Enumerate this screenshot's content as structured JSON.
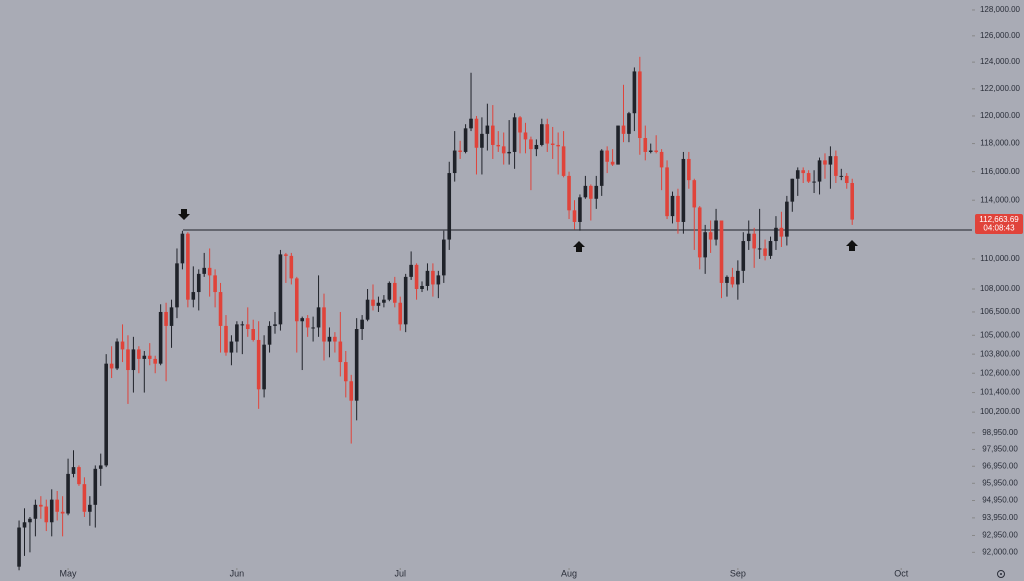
{
  "chart_data": {
    "type": "candlestick",
    "log_scale": true,
    "up_color": "#1f2229",
    "down_color": "#e0433a",
    "xlim": [
      -3.5,
      175
    ],
    "ylim": [
      91460,
      128780
    ],
    "xticks": [
      {
        "value": 9,
        "label": "May"
      },
      {
        "value": 40,
        "label": "Jun"
      },
      {
        "value": 70,
        "label": "Jul"
      },
      {
        "value": 101,
        "label": "Aug"
      },
      {
        "value": 132,
        "label": "Sep"
      },
      {
        "value": 162,
        "label": "Oct"
      }
    ],
    "yticks": [
      {
        "value": 128000,
        "label": "128,000.00"
      },
      {
        "value": 126000,
        "label": "126,000.00"
      },
      {
        "value": 124000,
        "label": "124,000.00"
      },
      {
        "value": 122000,
        "label": "122,000.00"
      },
      {
        "value": 120000,
        "label": "120,000.00"
      },
      {
        "value": 118000,
        "label": "118,000.00"
      },
      {
        "value": 116000,
        "label": "116,000.00"
      },
      {
        "value": 114000,
        "label": "114,000.00"
      },
      {
        "value": 110000,
        "label": "110,000.00"
      },
      {
        "value": 108000,
        "label": "108,000.00"
      },
      {
        "value": 106500,
        "label": "106,500.00"
      },
      {
        "value": 105000,
        "label": "105,000.00"
      },
      {
        "value": 103800,
        "label": "103,800.00"
      },
      {
        "value": 102600,
        "label": "102,600.00"
      },
      {
        "value": 101400,
        "label": "101,400.00"
      },
      {
        "value": 100200,
        "label": "100,200.00"
      },
      {
        "value": 98950,
        "label": "98,950.00"
      },
      {
        "value": 97950,
        "label": "97,950.00"
      },
      {
        "value": 96950,
        "label": "96,950.00"
      },
      {
        "value": 95950,
        "label": "95,950.00"
      },
      {
        "value": 94950,
        "label": "94,950.00"
      },
      {
        "value": 93950,
        "label": "93,950.00"
      },
      {
        "value": 92950,
        "label": "92,950.00"
      },
      {
        "value": 92000,
        "label": "92,000.00"
      }
    ],
    "support_level": 111950,
    "last_price_label": "112,663.69",
    "countdown": "04:08:43",
    "candles": [
      [
        91200,
        93800,
        91000,
        93400
      ],
      [
        93400,
        94500,
        91800,
        93700
      ],
      [
        93700,
        94000,
        92000,
        93900
      ],
      [
        93900,
        95000,
        92900,
        94700
      ],
      [
        94700,
        95200,
        93900,
        94600
      ],
      [
        94600,
        95000,
        93200,
        93700
      ],
      [
        93700,
        95600,
        92900,
        95000
      ],
      [
        95000,
        95500,
        93800,
        94300
      ],
      [
        94300,
        95200,
        92900,
        94200
      ],
      [
        94200,
        97400,
        94100,
        96500
      ],
      [
        96500,
        97900,
        96300,
        96900
      ],
      [
        96900,
        97000,
        95800,
        95900
      ],
      [
        95900,
        96300,
        94000,
        94300
      ],
      [
        94300,
        95200,
        93500,
        94700
      ],
      [
        94700,
        97000,
        93400,
        96800
      ],
      [
        96800,
        97700,
        95800,
        97000
      ],
      [
        97000,
        103800,
        96900,
        103200
      ],
      [
        103200,
        104300,
        102300,
        102900
      ],
      [
        102900,
        104800,
        102800,
        104600
      ],
      [
        104600,
        105700,
        103300,
        104100
      ],
      [
        104100,
        105000,
        100700,
        102800
      ],
      [
        102800,
        104900,
        101400,
        104100
      ],
      [
        104100,
        104300,
        102600,
        103500
      ],
      [
        103500,
        104000,
        101400,
        103700
      ],
      [
        103700,
        104500,
        103100,
        103500
      ],
      [
        103500,
        103700,
        102600,
        103200
      ],
      [
        103200,
        107000,
        103100,
        106500
      ],
      [
        106500,
        107100,
        102100,
        105600
      ],
      [
        105600,
        107300,
        104200,
        106800
      ],
      [
        106800,
        110700,
        106100,
        109700
      ],
      [
        109700,
        111900,
        109300,
        111700
      ],
      [
        111700,
        111800,
        106800,
        107300
      ],
      [
        107300,
        109500,
        106800,
        107800
      ],
      [
        107800,
        109300,
        106600,
        109000
      ],
      [
        109000,
        110400,
        108800,
        109400
      ],
      [
        109400,
        110700,
        107500,
        108900
      ],
      [
        108900,
        109300,
        106800,
        107800
      ],
      [
        107800,
        108400,
        103900,
        105600
      ],
      [
        105600,
        106300,
        103700,
        103900
      ],
      [
        103900,
        105000,
        103100,
        104600
      ],
      [
        104600,
        105900,
        103900,
        105700
      ],
      [
        105700,
        105900,
        103800,
        105700
      ],
      [
        105700,
        106800,
        104900,
        105400
      ],
      [
        105400,
        106000,
        104600,
        104700
      ],
      [
        104700,
        105900,
        100400,
        101600
      ],
      [
        101600,
        105000,
        101100,
        104400
      ],
      [
        104400,
        105900,
        103900,
        105600
      ],
      [
        105600,
        106500,
        105100,
        105700
      ],
      [
        105700,
        110600,
        105300,
        110300
      ],
      [
        110300,
        110400,
        108400,
        110200
      ],
      [
        110200,
        110400,
        108300,
        108700
      ],
      [
        108700,
        108800,
        103900,
        105900
      ],
      [
        105900,
        106200,
        102800,
        106100
      ],
      [
        106100,
        106300,
        104900,
        105500
      ],
      [
        105500,
        106200,
        104600,
        105500
      ],
      [
        105500,
        108900,
        104900,
        106800
      ],
      [
        106800,
        107700,
        103400,
        104600
      ],
      [
        104600,
        105500,
        103600,
        104900
      ],
      [
        104900,
        105200,
        103900,
        104600
      ],
      [
        104600,
        106500,
        102400,
        103300
      ],
      [
        103300,
        104000,
        101100,
        102100
      ],
      [
        102100,
        102500,
        98300,
        100900
      ],
      [
        100900,
        106100,
        99700,
        105400
      ],
      [
        105400,
        106300,
        104700,
        106000
      ],
      [
        106000,
        108000,
        105900,
        107300
      ],
      [
        107300,
        108300,
        106600,
        106900
      ],
      [
        106900,
        107500,
        106500,
        107100
      ],
      [
        107100,
        107600,
        106800,
        107300
      ],
      [
        107300,
        108500,
        107200,
        108400
      ],
      [
        108400,
        108800,
        106800,
        107100
      ],
      [
        107100,
        107500,
        105300,
        105700
      ],
      [
        105700,
        109000,
        105200,
        108800
      ],
      [
        108800,
        110500,
        108600,
        109600
      ],
      [
        109600,
        109700,
        107300,
        108000
      ],
      [
        108000,
        108500,
        107800,
        108200
      ],
      [
        108200,
        109700,
        107900,
        109200
      ],
      [
        109200,
        109700,
        107500,
        108300
      ],
      [
        108300,
        109200,
        107400,
        108900
      ],
      [
        108900,
        111900,
        108400,
        111300
      ],
      [
        111300,
        116700,
        110600,
        115900
      ],
      [
        115900,
        118900,
        115300,
        117500
      ],
      [
        117500,
        118200,
        116900,
        117400
      ],
      [
        117400,
        119400,
        117300,
        119100
      ],
      [
        119100,
        123200,
        118900,
        119800
      ],
      [
        119800,
        120000,
        115800,
        117700
      ],
      [
        117700,
        119900,
        115800,
        118700
      ],
      [
        118700,
        120900,
        117500,
        119300
      ],
      [
        119300,
        120800,
        116900,
        117900
      ],
      [
        117900,
        118900,
        117400,
        117800
      ],
      [
        117800,
        118800,
        116500,
        117300
      ],
      [
        117300,
        119700,
        116500,
        117400
      ],
      [
        117400,
        120200,
        116200,
        119900
      ],
      [
        119900,
        120000,
        117300,
        118800
      ],
      [
        118800,
        119500,
        117300,
        118300
      ],
      [
        118300,
        118500,
        114700,
        117600
      ],
      [
        117600,
        118300,
        117100,
        117900
      ],
      [
        117900,
        119800,
        117800,
        119400
      ],
      [
        119400,
        119800,
        117400,
        118000
      ],
      [
        118000,
        119200,
        116900,
        117900
      ],
      [
        117900,
        118800,
        115800,
        117800
      ],
      [
        117800,
        118900,
        115600,
        115700
      ],
      [
        115700,
        116000,
        112700,
        113300
      ],
      [
        113300,
        114000,
        112000,
        112500
      ],
      [
        112500,
        114400,
        111900,
        114200
      ],
      [
        114200,
        115700,
        114100,
        115000
      ],
      [
        115000,
        115100,
        112600,
        114100
      ],
      [
        114100,
        115700,
        113400,
        115000
      ],
      [
        115000,
        117600,
        114300,
        117500
      ],
      [
        117500,
        117800,
        115900,
        116700
      ],
      [
        116700,
        117600,
        116400,
        116500
      ],
      [
        116500,
        119300,
        116500,
        119300
      ],
      [
        119300,
        122300,
        118100,
        118700
      ],
      [
        118700,
        120300,
        118100,
        120200
      ],
      [
        120200,
        123600,
        118900,
        123300
      ],
      [
        123300,
        124400,
        117200,
        118400
      ],
      [
        118400,
        119300,
        116800,
        117400
      ],
      [
        117400,
        118000,
        117300,
        117500
      ],
      [
        117500,
        118600,
        117300,
        117400
      ],
      [
        117400,
        117600,
        114700,
        116300
      ],
      [
        116300,
        116800,
        112700,
        112900
      ],
      [
        112900,
        114600,
        112400,
        114300
      ],
      [
        114300,
        114800,
        111700,
        112500
      ],
      [
        112500,
        117400,
        111700,
        116900
      ],
      [
        116900,
        117400,
        114800,
        115400
      ],
      [
        115400,
        115500,
        110600,
        113500
      ],
      [
        113500,
        113600,
        109300,
        110100
      ],
      [
        110100,
        112300,
        109000,
        111800
      ],
      [
        111800,
        112600,
        110400,
        111300
      ],
      [
        111300,
        113400,
        110900,
        112600
      ],
      [
        112600,
        112600,
        107400,
        108400
      ],
      [
        108400,
        108900,
        107500,
        108800
      ],
      [
        108800,
        109400,
        108100,
        108300
      ],
      [
        108300,
        109900,
        107300,
        109200
      ],
      [
        109200,
        111800,
        108400,
        111200
      ],
      [
        111200,
        112600,
        110600,
        111700
      ],
      [
        111700,
        112100,
        109400,
        110700
      ],
      [
        110700,
        113400,
        110000,
        110700
      ],
      [
        110700,
        111300,
        109900,
        110200
      ],
      [
        110200,
        111500,
        110000,
        111200
      ],
      [
        111200,
        112900,
        110600,
        112100
      ],
      [
        112100,
        113200,
        110800,
        111500
      ],
      [
        111500,
        114300,
        110900,
        113900
      ],
      [
        113900,
        115500,
        113200,
        115500
      ],
      [
        115500,
        116300,
        114300,
        116100
      ],
      [
        116100,
        116300,
        115200,
        115900
      ],
      [
        115900,
        116100,
        115200,
        115300
      ],
      [
        115300,
        116100,
        114500,
        115300
      ],
      [
        115300,
        117000,
        114400,
        116800
      ],
      [
        116800,
        117300,
        115500,
        116500
      ],
      [
        116500,
        117800,
        114800,
        117100
      ],
      [
        117100,
        117500,
        115200,
        115700
      ],
      [
        115700,
        116200,
        115400,
        115700
      ],
      [
        115700,
        115900,
        114800,
        115200
      ],
      [
        115200,
        115500,
        112300,
        112663.69
      ]
    ]
  }
}
